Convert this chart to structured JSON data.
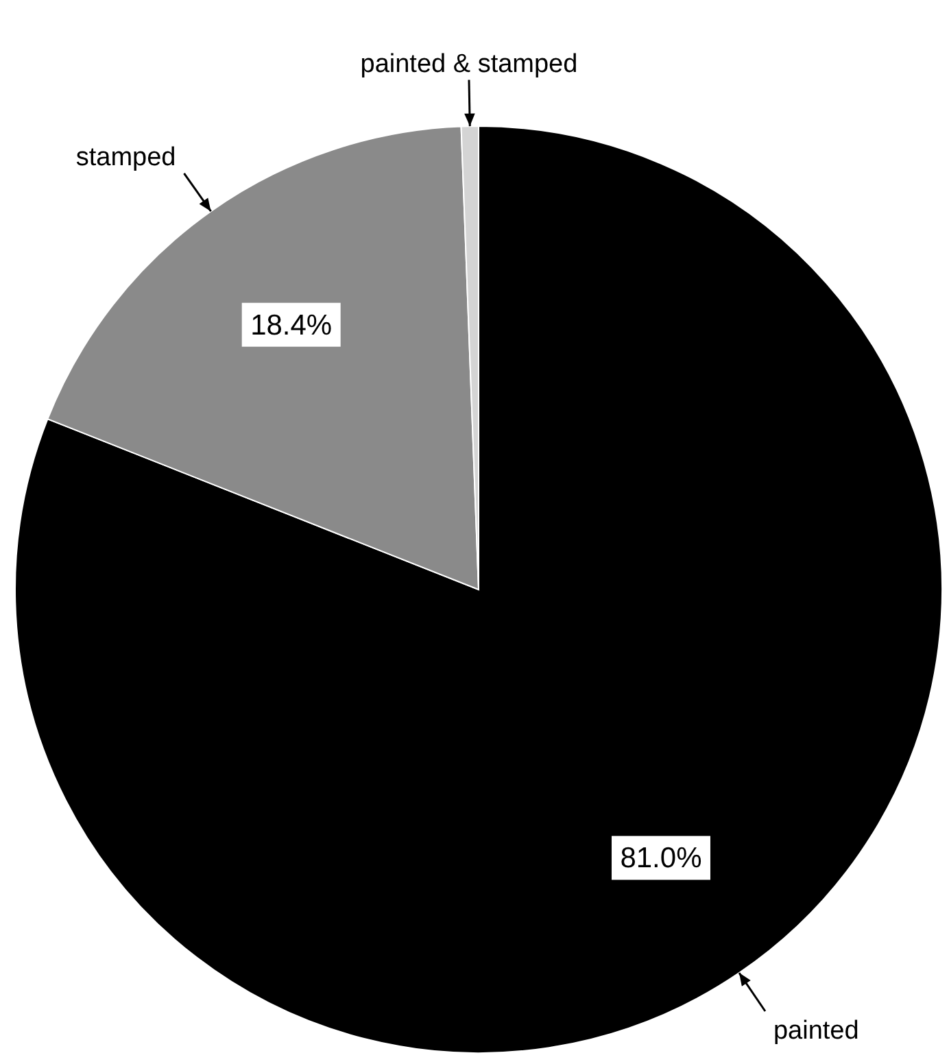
{
  "chart_data": {
    "type": "pie",
    "categories": [
      "painted",
      "stamped",
      "painted & stamped"
    ],
    "values": [
      81.0,
      18.4,
      0.6
    ],
    "colors": [
      "#000000",
      "#8a8a8a",
      "#d4d4d4"
    ],
    "value_labels": [
      "81.0%",
      "18.4%",
      null
    ]
  }
}
